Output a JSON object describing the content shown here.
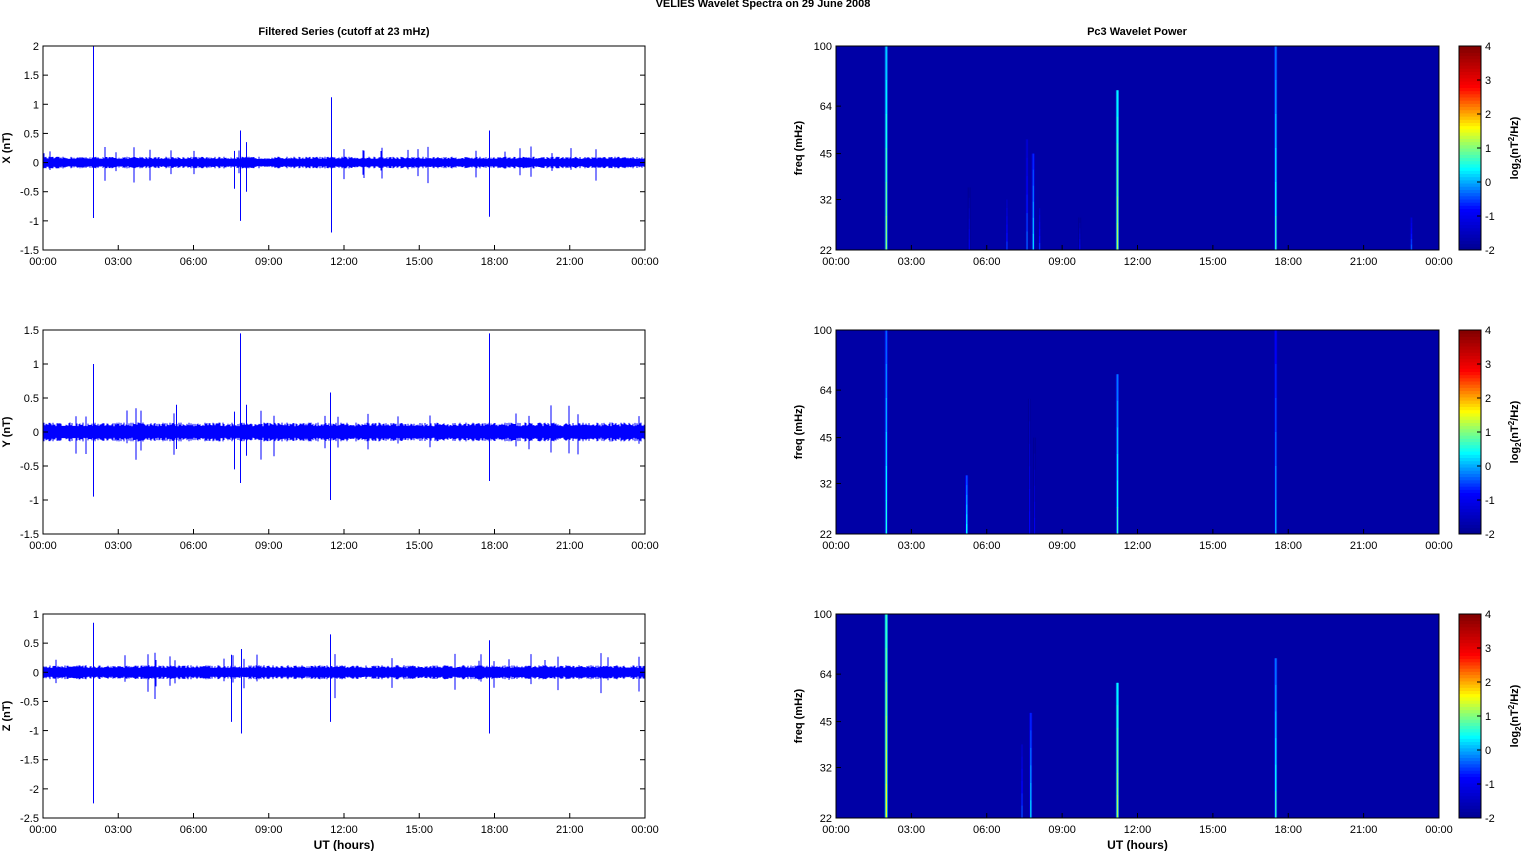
{
  "figure_title": "VELIES Wavelet Spectra on 29 June      2008",
  "left_column_title": "Filtered Series (cutoff at 23 mHz)",
  "right_column_title": "Pc3 Wavelet Power",
  "time_ticks": [
    "00:00",
    "03:00",
    "06:00",
    "09:00",
    "12:00",
    "15:00",
    "18:00",
    "21:00",
    "00:00"
  ],
  "xlabel": "UT (hours)",
  "spectro_ylabel": "freq (mHz)",
  "freq_ticks": [
    "100",
    "64",
    "45",
    "32",
    "22"
  ],
  "colorbar_ticks": [
    "4",
    "3",
    "2",
    "1",
    "0",
    "-1",
    "-2"
  ],
  "colorbar_label_main": "log",
  "colorbar_label_sub": "2",
  "colorbar_label_paren": "(nT",
  "colorbar_label_sup": "2",
  "colorbar_label_tail": "/Hz)",
  "colors": {
    "trace": "#0000ff",
    "spectro_bg": "#00008f",
    "colormap": [
      "#00008f",
      "#0000ff",
      "#00ffff",
      "#ffff00",
      "#ff0000",
      "#800000"
    ]
  },
  "chart_data": [
    {
      "type": "line",
      "panel": "X",
      "ylabel": "X (nT)",
      "xlabel": "",
      "x_unit": "UT hours",
      "xlim": [
        0,
        24
      ],
      "ylim": [
        -1.5,
        2
      ],
      "yticks": [
        "2",
        "1.5",
        "1",
        "0.5",
        "0",
        "-0.5",
        "-1",
        "-1.5"
      ],
      "noise_amplitude": 0.1,
      "spikes": [
        {
          "t": 2.0,
          "max": 2.0,
          "min": -0.95
        },
        {
          "t": 7.6,
          "max": 0.2,
          "min": -0.45
        },
        {
          "t": 7.85,
          "max": 0.55,
          "min": -1.0
        },
        {
          "t": 8.1,
          "max": 0.35,
          "min": -0.5
        },
        {
          "t": 11.5,
          "max": 1.12,
          "min": -1.2
        },
        {
          "t": 17.8,
          "max": 0.55,
          "min": -0.93
        }
      ]
    },
    {
      "type": "line",
      "panel": "Y",
      "ylabel": "Y (nT)",
      "xlabel": "",
      "x_unit": "UT hours",
      "xlim": [
        0,
        24
      ],
      "ylim": [
        -1.5,
        1.5
      ],
      "yticks": [
        "1.5",
        "1",
        "0.5",
        "0",
        "-0.5",
        "-1",
        "-1.5"
      ],
      "noise_amplitude": 0.14,
      "spikes": [
        {
          "t": 2.0,
          "max": 1.0,
          "min": -0.95
        },
        {
          "t": 5.3,
          "max": 0.4,
          "min": -0.25
        },
        {
          "t": 7.6,
          "max": 0.3,
          "min": -0.55
        },
        {
          "t": 7.85,
          "max": 1.45,
          "min": -0.75
        },
        {
          "t": 8.1,
          "max": 0.4,
          "min": -0.35
        },
        {
          "t": 11.45,
          "max": 0.58,
          "min": -1.0
        },
        {
          "t": 17.8,
          "max": 1.45,
          "min": -0.72
        }
      ]
    },
    {
      "type": "line",
      "panel": "Z",
      "ylabel": "Z (nT)",
      "xlabel": "UT (hours)",
      "x_unit": "UT hours",
      "xlim": [
        0,
        24
      ],
      "ylim": [
        -2.5,
        1
      ],
      "yticks": [
        "1",
        "0.5",
        "0",
        "-0.5",
        "-1",
        "-1.5",
        "-2",
        "-2.5"
      ],
      "noise_amplitude": 0.12,
      "spikes": [
        {
          "t": 2.0,
          "max": 0.85,
          "min": -2.25
        },
        {
          "t": 7.5,
          "max": 0.3,
          "min": -0.85
        },
        {
          "t": 7.9,
          "max": 0.4,
          "min": -1.05
        },
        {
          "t": 11.45,
          "max": 0.65,
          "min": -0.85
        },
        {
          "t": 17.8,
          "max": 0.55,
          "min": -1.05
        }
      ]
    },
    {
      "type": "heatmap",
      "panel": "Pc3 X",
      "ylabel": "freq (mHz)",
      "xlabel": "",
      "xlim": [
        0,
        24
      ],
      "ylim_mHz": [
        22,
        100
      ],
      "y_scale": "log",
      "clim": [
        -2,
        4
      ],
      "colorbar_label": "log2(nT^2/Hz)",
      "background_level": -1.75,
      "streaks": [
        {
          "t": 2.0,
          "f_top": 100,
          "level": 1.0
        },
        {
          "t": 5.3,
          "f_top": 35,
          "level": -1.0
        },
        {
          "t": 6.8,
          "f_top": 32,
          "level": -0.6
        },
        {
          "t": 7.6,
          "f_top": 50,
          "level": -0.4
        },
        {
          "t": 7.85,
          "f_top": 45,
          "level": 0.2
        },
        {
          "t": 8.1,
          "f_top": 30,
          "level": -0.6
        },
        {
          "t": 9.7,
          "f_top": 28,
          "level": -1.0
        },
        {
          "t": 11.2,
          "f_top": 72,
          "level": 1.2
        },
        {
          "t": 17.5,
          "f_top": 100,
          "level": 0.6
        },
        {
          "t": 22.9,
          "f_top": 28,
          "level": -0.4
        }
      ]
    },
    {
      "type": "heatmap",
      "panel": "Pc3 Y",
      "ylabel": "freq (mHz)",
      "xlabel": "",
      "xlim": [
        0,
        24
      ],
      "ylim_mHz": [
        22,
        100
      ],
      "y_scale": "log",
      "clim": [
        -2,
        4
      ],
      "colorbar_label": "log2(nT^2/Hz)",
      "background_level": -1.75,
      "streaks": [
        {
          "t": 2.0,
          "f_top": 100,
          "level": 0.5
        },
        {
          "t": 5.2,
          "f_top": 34,
          "level": 0.4
        },
        {
          "t": 7.7,
          "f_top": 60,
          "level": -0.8
        },
        {
          "t": 7.9,
          "f_top": 45,
          "level": -1.0
        },
        {
          "t": 11.2,
          "f_top": 72,
          "level": 0.6
        },
        {
          "t": 17.5,
          "f_top": 100,
          "level": 0.0
        }
      ]
    },
    {
      "type": "heatmap",
      "panel": "Pc3 Z",
      "ylabel": "freq (mHz)",
      "xlabel": "UT (hours)",
      "xlim": [
        0,
        24
      ],
      "ylim_mHz": [
        22,
        100
      ],
      "y_scale": "log",
      "clim": [
        -2,
        4
      ],
      "colorbar_label": "log2(nT^2/Hz)",
      "background_level": -1.75,
      "streaks": [
        {
          "t": 2.0,
          "f_top": 100,
          "level": 1.5
        },
        {
          "t": 7.4,
          "f_top": 38,
          "level": -0.5
        },
        {
          "t": 7.75,
          "f_top": 48,
          "level": 0.2
        },
        {
          "t": 11.2,
          "f_top": 60,
          "level": 1.2
        },
        {
          "t": 17.5,
          "f_top": 72,
          "level": 0.6
        }
      ]
    }
  ]
}
